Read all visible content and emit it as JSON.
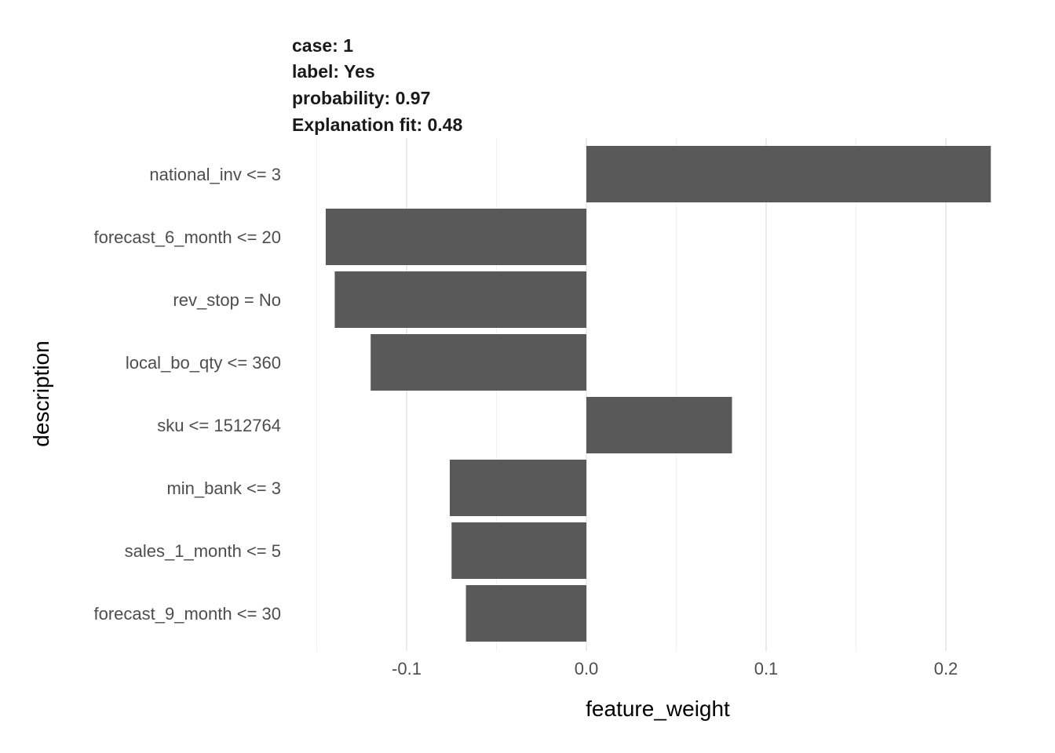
{
  "header": {
    "case": "case: 1",
    "label": "label: Yes",
    "probability": "probability: 0.97",
    "fit": "Explanation fit: 0.48"
  },
  "chart_data": {
    "type": "bar",
    "orientation": "horizontal",
    "xlabel": "feature_weight",
    "ylabel": "description",
    "xlim": [
      -0.15,
      0.23
    ],
    "x_ticks": [
      -0.1,
      0.0,
      0.1,
      0.2
    ],
    "x_tick_labels": [
      "-0.1",
      "0.0",
      "0.1",
      "0.2"
    ],
    "grid": true,
    "bar_color": "#595959",
    "categories": [
      "national_inv <= 3",
      "forecast_6_month <= 20",
      "rev_stop = No",
      "local_bo_qty <= 360",
      "sku <= 1512764",
      "min_bank <= 3",
      "sales_1_month <= 5",
      "forecast_9_month <= 30"
    ],
    "values": [
      0.225,
      -0.145,
      -0.14,
      -0.12,
      0.081,
      -0.076,
      -0.075,
      -0.067
    ]
  }
}
